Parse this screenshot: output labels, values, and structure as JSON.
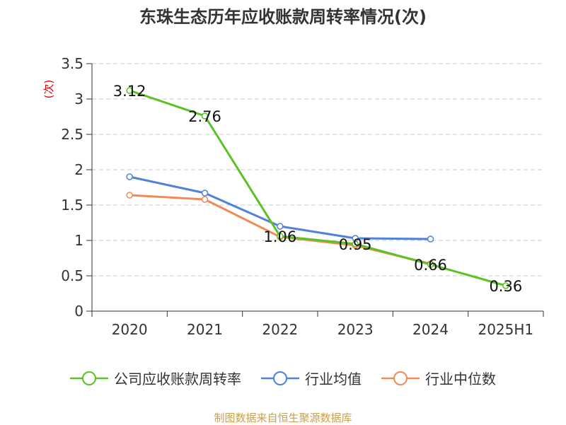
{
  "title": "东珠生态历年应收账款周转率情况(次)",
  "source": "制图数据来自恒生聚源数据库",
  "colors": {
    "turnover": "#5cc224",
    "industry_avg": "#4f82d8",
    "industry_median": "#f08b59",
    "axis": "#333333",
    "grid": "#c8c8c8",
    "unit_label": "#e00000"
  },
  "chart_data": {
    "type": "line",
    "title": "东珠生态历年应收账款周转率情况(次)",
    "ylabel": "(次)",
    "xlabel": "",
    "categories": [
      "2020",
      "2021",
      "2022",
      "2023",
      "2024",
      "2025H1"
    ],
    "ylim": [
      0,
      3.5
    ],
    "yticks": [
      "0",
      "0.5",
      "1",
      "1.5",
      "2",
      "2.5",
      "3",
      "3.5"
    ],
    "grid": true,
    "legend_position": "bottom",
    "series": [
      {
        "name": "公司应收账款周转率",
        "values": [
          3.12,
          2.76,
          1.06,
          0.95,
          0.66,
          0.36
        ],
        "labels": [
          "3.12",
          "2.76",
          "1.06",
          "0.95",
          "0.66",
          "0.36"
        ],
        "color": "#5cc224"
      },
      {
        "name": "行业均值",
        "values": [
          1.9,
          1.67,
          1.2,
          1.03,
          1.02,
          null
        ],
        "color": "#4f82d8"
      },
      {
        "name": "行业中位数",
        "values": [
          1.64,
          1.58,
          1.05,
          0.93,
          0.67,
          null
        ],
        "color": "#f08b59"
      }
    ]
  }
}
